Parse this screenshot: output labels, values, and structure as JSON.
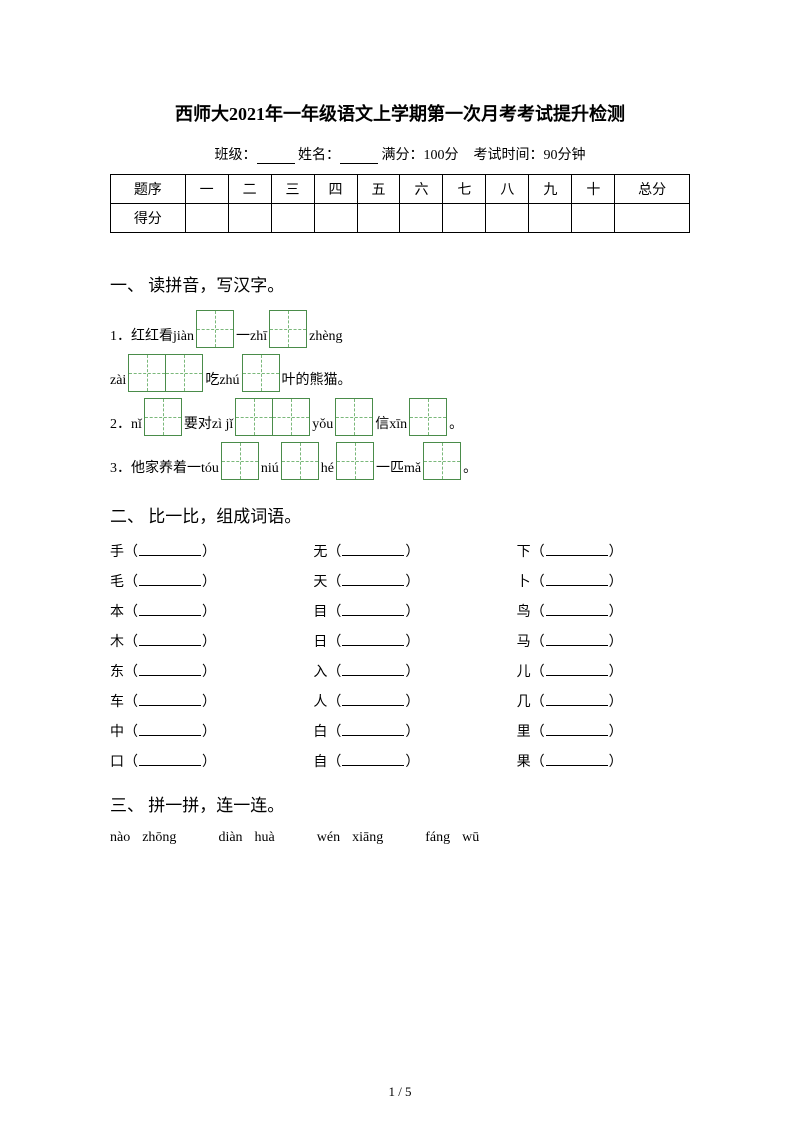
{
  "title": "西师大2021年一年级语文上学期第一次月考考试提升检测",
  "info": {
    "class_label": "班级：",
    "name_label": "姓名：",
    "full_score": "满分：100分",
    "time_label": "考试时间：90分钟"
  },
  "score_table": {
    "header_label": "题序",
    "columns": [
      "一",
      "二",
      "三",
      "四",
      "五",
      "六",
      "七",
      "八",
      "九",
      "十",
      "总分"
    ],
    "score_label": "得分"
  },
  "section1": {
    "title": "一、 读拼音，写汉字。",
    "lines": {
      "l1a": "1．红红看jiàn",
      "l1b": "一zhī",
      "l1c": "zhèng",
      "l2a": "zài",
      "l2b": "吃zhú",
      "l2c": "叶的熊猫。",
      "l3a": "2．nǐ",
      "l3b": "要对zì jǐ",
      "l3c": "yǒu",
      "l3d": "信xīn",
      "l3e": "。",
      "l4a": "3．他家养着一tóu",
      "l4b": "niú",
      "l4c": "hé",
      "l4d": "一匹mǎ",
      "l4e": "。"
    }
  },
  "section2": {
    "title": "二、 比一比，组成词语。",
    "rows": [
      [
        "手",
        "无",
        "下"
      ],
      [
        "毛",
        "天",
        "卜"
      ],
      [
        "本",
        "目",
        "鸟"
      ],
      [
        "木",
        "日",
        "马"
      ],
      [
        "东",
        "入",
        "儿"
      ],
      [
        "车",
        "人",
        "几"
      ],
      [
        "中",
        "白",
        "里"
      ],
      [
        "口",
        "自",
        "果"
      ]
    ]
  },
  "section3": {
    "title": "三、 拼一拼，连一连。",
    "pinyin": [
      [
        "nào",
        "zhōng"
      ],
      [
        "diàn",
        "huà"
      ],
      [
        "wén",
        "xiāng"
      ],
      [
        "fáng",
        "wū"
      ]
    ]
  },
  "page_num": "1 / 5",
  "colors": {
    "tian_border": "#4a8c4a",
    "tian_dash": "#7ab87a",
    "text": "#000000",
    "bg": "#ffffff"
  }
}
